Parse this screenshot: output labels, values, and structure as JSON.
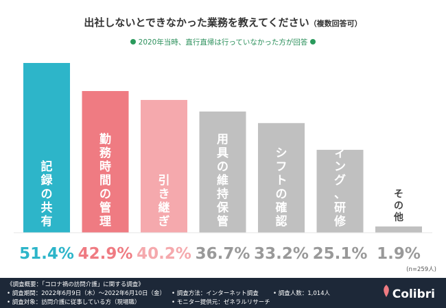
{
  "title": "出社しないとできなかった業務を教えてください",
  "title_note": "（複数回答可）",
  "subtitle": "2020年当時、直行直帰は行っていなかった方が回答",
  "sample_size": "(n=259人)",
  "colors": {
    "highlight1": "#2db5c9",
    "highlight2": "#ef7b82",
    "highlight3": "#f5a9ad",
    "gray": "#c0c0c0",
    "subtitle_green": "#2a9a5c"
  },
  "chart_data": {
    "type": "bar",
    "categories": [
      "記録の共有",
      "勤務時間の管理",
      "引き継ぎ",
      "用具の維持保管",
      "シフトの確認",
      "ミーティング、研修",
      "その他"
    ],
    "values": [
      51.4,
      42.9,
      40.2,
      36.7,
      33.2,
      25.1,
      1.9
    ],
    "value_labels": [
      "51.4%",
      "42.9%",
      "40.2%",
      "36.7%",
      "33.2%",
      "25.1%",
      "1.9%"
    ],
    "ylim": [
      0,
      51.4
    ]
  },
  "footer": {
    "heading": "《調査概要：「コロナ禍の訪問介護」に関する調査》",
    "period": "• 調査期間：2022年6月9日（木）～2022年6月10日（金）",
    "method": "• 調査方法：インターネット調査",
    "count": "• 調査人数：1,014人",
    "target": "• 調査対象：訪問介護に従事している方（現場職）",
    "provider": "• モニター提供元：ゼネラルリサーチ",
    "logo": "Colibri"
  }
}
